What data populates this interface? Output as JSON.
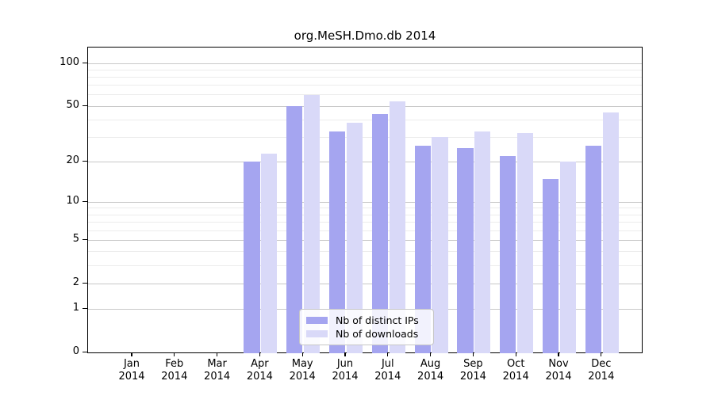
{
  "chart_data": {
    "type": "bar",
    "title": "org.MeSH.Dmo.db 2014",
    "categories": [
      "Jan 2014",
      "Feb 2014",
      "Mar 2014",
      "Apr 2014",
      "May 2014",
      "Jun 2014",
      "Jul 2014",
      "Aug 2014",
      "Sep 2014",
      "Oct 2014",
      "Nov 2014",
      "Dec 2014"
    ],
    "x_tick_months": [
      "Jan",
      "Feb",
      "Mar",
      "Apr",
      "May",
      "Jun",
      "Jul",
      "Aug",
      "Sep",
      "Oct",
      "Nov",
      "Dec"
    ],
    "x_tick_year": "2014",
    "series": [
      {
        "name": "Nb of distinct IPs",
        "color": "#a5a5f0",
        "values": [
          0,
          0,
          0,
          20,
          50,
          33,
          44,
          26,
          25,
          22,
          15,
          26
        ]
      },
      {
        "name": "Nb of downloads",
        "color": "#d9d9f8",
        "values": [
          0,
          0,
          0,
          23,
          60,
          38,
          54,
          30,
          33,
          32,
          20,
          45
        ]
      }
    ],
    "y_scale": "log10(1+x)",
    "y_ticks": [
      0,
      1,
      2,
      5,
      10,
      20,
      50,
      100
    ],
    "y_minor_gridlines": [
      3,
      4,
      6,
      7,
      8,
      9,
      30,
      40,
      60,
      70,
      80,
      90
    ],
    "ylim": [
      0,
      130
    ],
    "grid": true,
    "legend_position": "bottom-center",
    "colors": {
      "major_grid": "#c8c8c8",
      "minor_grid": "#ececec",
      "axis": "#000000",
      "background": "#ffffff"
    }
  }
}
